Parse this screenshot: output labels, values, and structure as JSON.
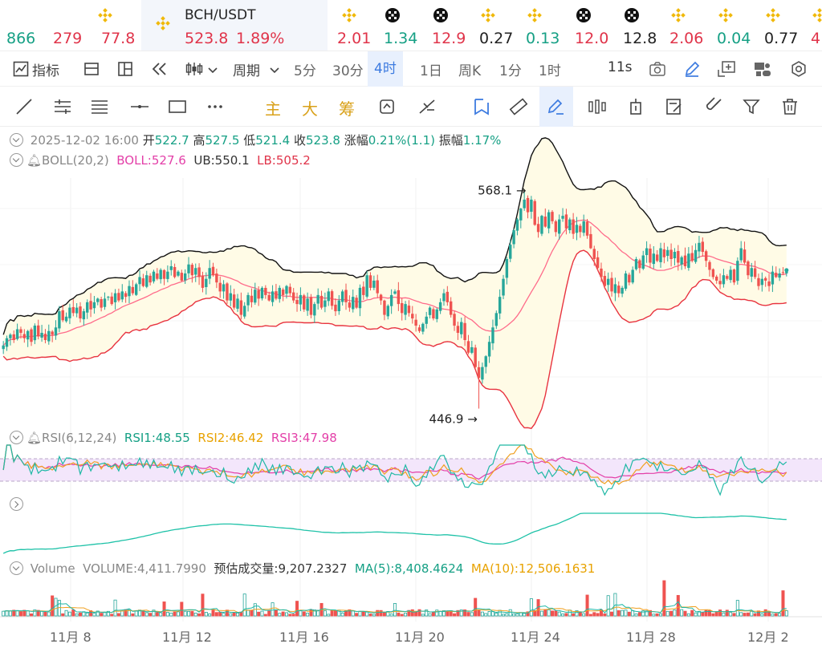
{
  "tickers": [
    {
      "pct": "866",
      "color": "#16a085",
      "icon": "binance-icon"
    },
    {
      "pct": "279",
      "color": "#e0344a",
      "icon": "binance-icon"
    },
    {
      "pct": "77.8",
      "color": "#e0344a",
      "icon": "binance-icon"
    },
    {
      "pct": "2.01",
      "color": "#e0344a",
      "icon": "binance-icon"
    },
    {
      "pct": "1.34",
      "color": "#16a085",
      "icon": "okx-icon"
    },
    {
      "pct": "12.9",
      "color": "#e0344a",
      "icon": "okx-icon"
    },
    {
      "pct": "0.27",
      "color": "#222222",
      "icon": "binance-icon"
    },
    {
      "pct": "0.13",
      "color": "#16a085",
      "icon": "binance-icon"
    },
    {
      "pct": "12.0",
      "color": "#e0344a",
      "icon": "okx-icon"
    },
    {
      "pct": "12.8",
      "color": "#222222",
      "icon": "okx-icon"
    },
    {
      "pct": "2.06",
      "color": "#e0344a",
      "icon": "binance-icon"
    },
    {
      "pct": "0.04",
      "color": "#16a085",
      "icon": "binance-icon"
    },
    {
      "pct": "0.77",
      "color": "#222222",
      "icon": "binance-icon"
    },
    {
      "pct": "4",
      "color": "#e0344a",
      "icon": "binance-icon"
    }
  ],
  "active": {
    "symbol": "BCH/USDT",
    "last": "523.8",
    "pct": "1.89%",
    "icon": "binance-icon"
  },
  "toolbar": {
    "indicator": "指标",
    "period": "周期",
    "intervals": [
      "5分",
      "30分",
      "4时",
      "1日",
      "周K",
      "1分",
      "1时"
    ],
    "selected": "4时",
    "countdown": "11s"
  },
  "draw_tools": {
    "main": "主",
    "big": "大",
    "chip": "筹"
  },
  "ohlc": {
    "date": "2025-12-02 16:00",
    "o_l": "开",
    "o": "522.7",
    "h_l": "高",
    "h": "527.5",
    "l_l": "低",
    "l": "521.4",
    "c_l": "收",
    "c": "523.8",
    "chg_l": "涨幅",
    "chg": "0.21%(1.1)",
    "amp_l": "振幅",
    "amp": "1.17%"
  },
  "boll": {
    "name": "BOLL(20,2)",
    "mid": "BOLL:527.6",
    "ub": "UB:550.1",
    "lb": "LB:505.2"
  },
  "annotations": {
    "high": "568.1",
    "low": "446.9"
  },
  "rsi": {
    "name": "RSI(6,12,24)",
    "r1": "RSI1:48.55",
    "r2": "RSI2:46.42",
    "r3": "RSI3:47.98"
  },
  "volume": {
    "name": "Volume",
    "vol": "VOLUME:4,411.7990",
    "est": "预估成交量:9,207.2327",
    "ma5": "MA(5):8,408.4624",
    "ma10": "MA(10):12,506.1631"
  },
  "colors": {
    "up": "#26a69a",
    "down": "#ef5350",
    "accent": "#3d7be0",
    "boll_ub": "#111111",
    "boll_mid": "#ff6b8a",
    "boll_lb": "#e8333f"
  },
  "chart_data": {
    "type": "candlestick",
    "symbol": "BCH/USDT",
    "interval": "4h",
    "x_ticks": [
      "11月 8",
      "11月 12",
      "11月 16",
      "11月 20",
      "11月 24",
      "11月 28",
      "12月 2"
    ],
    "price_range": [
      440,
      575
    ],
    "close": [
      482,
      486,
      488,
      485,
      491,
      489,
      486,
      490,
      484,
      493,
      487,
      489,
      485,
      490,
      488,
      492,
      501,
      496,
      498,
      503,
      500,
      503,
      497,
      501,
      506,
      502,
      506,
      508,
      503,
      508,
      509,
      505,
      511,
      507,
      512,
      509,
      515,
      511,
      516,
      520,
      515,
      521,
      517,
      523,
      519,
      524,
      519,
      523,
      526,
      520,
      523,
      518,
      522,
      527,
      521,
      525,
      520,
      514,
      519,
      525,
      521,
      517,
      512,
      516,
      507,
      511,
      503,
      508,
      499,
      504,
      510,
      506,
      513,
      508,
      514,
      510,
      507,
      512,
      508,
      514,
      510,
      515,
      511,
      507,
      505,
      510,
      502,
      508,
      499,
      505,
      510,
      503,
      507,
      512,
      504,
      501,
      507,
      512,
      506,
      503,
      509,
      503,
      514,
      510,
      521,
      514,
      518,
      511,
      507,
      499,
      504,
      510,
      512,
      505,
      500,
      505,
      500,
      497,
      493,
      490,
      494,
      498,
      503,
      497,
      502,
      506,
      511,
      506,
      499,
      493,
      489,
      495,
      485,
      478,
      481,
      470,
      464,
      470,
      476,
      484,
      492,
      500,
      509,
      519,
      530,
      538,
      546,
      552,
      558,
      563,
      556,
      563,
      549,
      545,
      554,
      548,
      556,
      551,
      545,
      552,
      554,
      547,
      552,
      544,
      549,
      545,
      551,
      543,
      536,
      530,
      525,
      520,
      515,
      519,
      512,
      516,
      511,
      514,
      522,
      517,
      524,
      530,
      525,
      532,
      536,
      528,
      533,
      529,
      536,
      531,
      535,
      530,
      534,
      528,
      531,
      526,
      533,
      529,
      535,
      539,
      534,
      529,
      524,
      520,
      518,
      516,
      521,
      519,
      524,
      517,
      529,
      536,
      528,
      521,
      525,
      520,
      515,
      519,
      518,
      515,
      523,
      520,
      522,
      522.7,
      523.8
    ],
    "rsi1_range": [
      25,
      75
    ],
    "volume_ma": [
      "MA(5)",
      "MA(10)"
    ]
  }
}
